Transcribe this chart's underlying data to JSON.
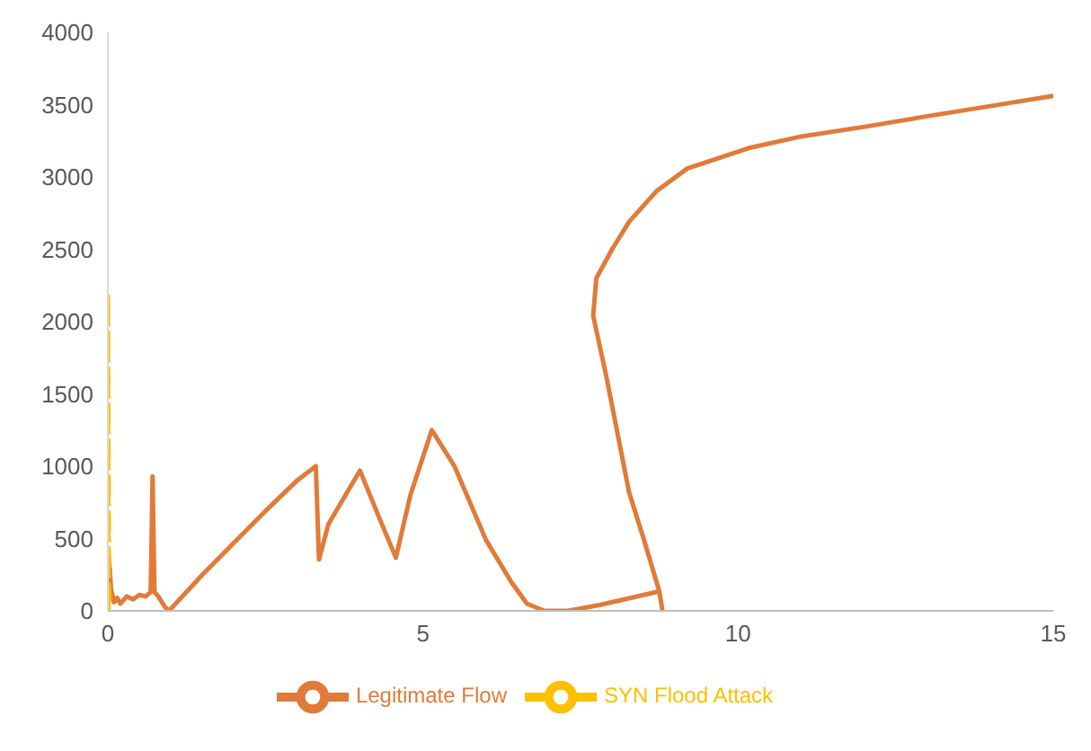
{
  "chart_data": {
    "type": "line",
    "xlim": [
      0,
      15
    ],
    "xticks": [
      0,
      5,
      10,
      15
    ],
    "ylim": [
      0,
      4000
    ],
    "yticks": [
      0,
      500,
      1000,
      1500,
      2000,
      2500,
      3000,
      3500,
      4000
    ],
    "grid": false,
    "legend": "bottom",
    "series": [
      {
        "name": "Legitimate Flow",
        "color": "#e07b39",
        "line_style": "solid",
        "x": [
          0,
          0.02,
          0.05,
          0.1,
          0.15,
          0.2,
          0.3,
          0.4,
          0.5,
          0.6,
          0.68,
          0.71,
          0.74,
          0.8,
          0.9,
          0.97,
          1.5,
          2.0,
          2.5,
          3.0,
          3.3,
          3.35,
          3.5,
          4.0,
          4.3,
          4.57,
          4.8,
          5.14,
          5.5,
          6.0,
          6.4,
          6.65,
          6.93,
          7.3,
          7.8,
          8.3,
          8.75,
          8.8,
          8.75,
          8.5,
          8.27,
          7.9,
          7.7,
          7.75,
          8.0,
          8.27,
          8.7,
          9.2,
          10.17,
          11.0,
          12.05,
          13.0,
          14.0,
          15.0
        ],
        "values": [
          0,
          355,
          150,
          60,
          90,
          50,
          100,
          80,
          110,
          100,
          130,
          930,
          130,
          100,
          30,
          0,
          250,
          470,
          690,
          900,
          1000,
          355,
          600,
          970,
          650,
          367,
          800,
          1250,
          1000,
          490,
          200,
          50,
          0,
          0,
          40,
          90,
          135,
          0,
          135,
          500,
          820,
          1640,
          2040,
          2300,
          2500,
          2690,
          2900,
          3060,
          3200,
          3280,
          3350,
          3420,
          3490,
          3560
        ]
      },
      {
        "name": "SYN Flood Attack",
        "color": "#ffc000",
        "line_style": "dashed",
        "x": [
          0.01,
          0,
          0.02
        ],
        "values": [
          0,
          2200,
          0
        ]
      }
    ]
  }
}
